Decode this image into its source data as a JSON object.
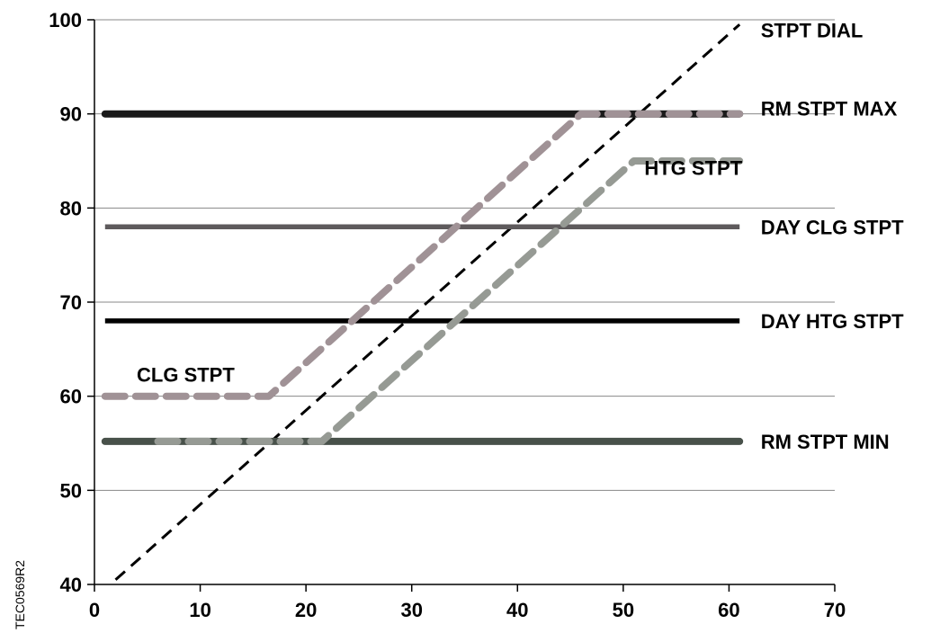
{
  "document_code": "TEC0569R2",
  "chart_data": {
    "type": "line",
    "xlim": [
      0,
      70
    ],
    "ylim": [
      40,
      100
    ],
    "x_ticks": [
      0,
      10,
      20,
      30,
      40,
      50,
      60,
      70
    ],
    "y_ticks": [
      40,
      50,
      60,
      70,
      80,
      90,
      100
    ],
    "grid": "horizontal",
    "series": [
      {
        "name": "STPT DIAL",
        "color": "#000000",
        "style": "dashed",
        "points": [
          [
            2,
            40.5
          ],
          [
            61,
            99.5
          ]
        ]
      },
      {
        "name": "RM STPT MAX",
        "color": "#1a1a1a",
        "style": "solid-thick",
        "points": [
          [
            1,
            90
          ],
          [
            61,
            90
          ]
        ]
      },
      {
        "name": "DAY CLG STPT",
        "color": "#5e5a5c",
        "style": "solid",
        "points": [
          [
            1,
            78
          ],
          [
            61,
            78
          ]
        ]
      },
      {
        "name": "DAY HTG STPT",
        "color": "#000000",
        "style": "solid",
        "points": [
          [
            1,
            68
          ],
          [
            61,
            68
          ]
        ]
      },
      {
        "name": "RM STPT MIN",
        "color": "#48514a",
        "style": "solid-thick",
        "points": [
          [
            1,
            55.2
          ],
          [
            61,
            55.2
          ]
        ]
      },
      {
        "name": "CLG STPT",
        "color": "#a09296",
        "style": "dashed-thick",
        "points": [
          [
            1,
            60
          ],
          [
            16.5,
            60
          ],
          [
            46,
            90
          ],
          [
            61,
            90
          ]
        ]
      },
      {
        "name": "HTG STPT",
        "color": "#969a94",
        "style": "dashed-thick",
        "points": [
          [
            6,
            55.2
          ],
          [
            21.5,
            55.2
          ],
          [
            51,
            85
          ],
          [
            61,
            85
          ]
        ]
      }
    ],
    "labels": [
      {
        "text": "STPT DIAL",
        "x": 63,
        "y": 98.9
      },
      {
        "text": "RM STPT MAX",
        "x": 63,
        "y": 90.6
      },
      {
        "text": "HTG STPT",
        "x": 52,
        "y": 84.3
      },
      {
        "text": "DAY CLG STPT",
        "x": 63,
        "y": 78
      },
      {
        "text": "DAY HTG STPT",
        "x": 63,
        "y": 68
      },
      {
        "text": "CLG STPT",
        "x": 4,
        "y": 62.3
      },
      {
        "text": "RM STPT MIN",
        "x": 63,
        "y": 55.2
      }
    ]
  }
}
